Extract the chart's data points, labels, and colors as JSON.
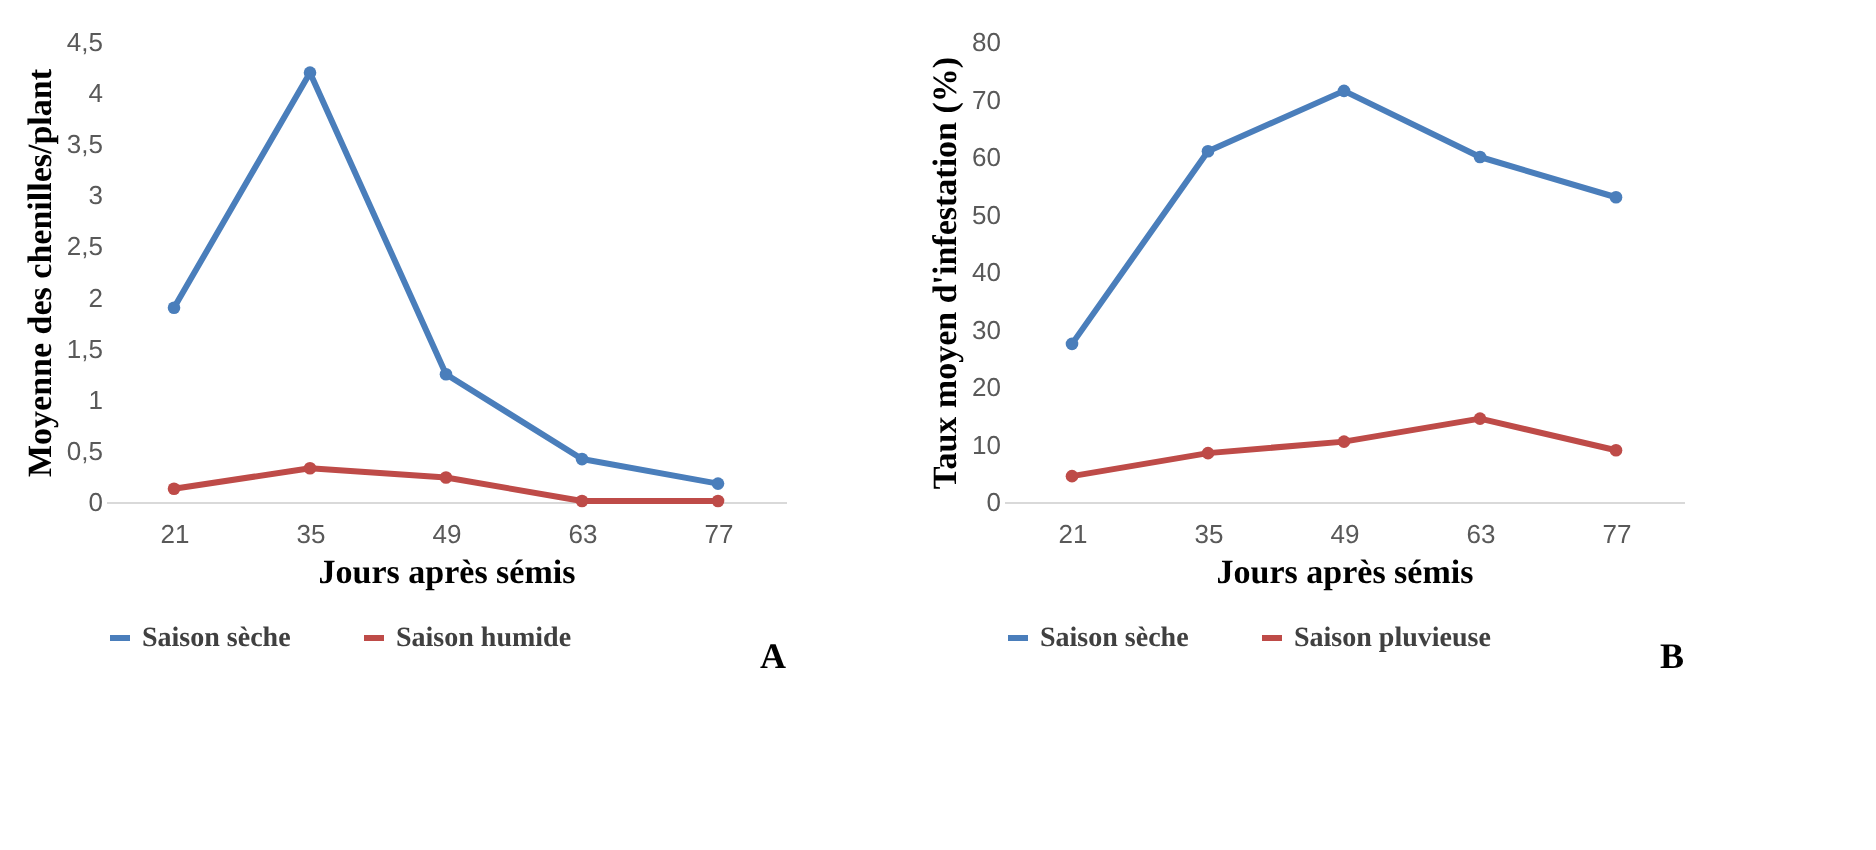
{
  "chart_data": [
    {
      "type": "line",
      "categories": [
        "21",
        "35",
        "49",
        "63",
        "77"
      ],
      "xlabel": "Jours après sémis",
      "ylabel": "Moyenne des chenilles/plant",
      "ylim": [
        0,
        4.5
      ],
      "yticks": [
        {
          "value": 0,
          "label": "0"
        },
        {
          "value": 0.5,
          "label": "0,5"
        },
        {
          "value": 1,
          "label": "1"
        },
        {
          "value": 1.5,
          "label": "1,5"
        },
        {
          "value": 2,
          "label": "2"
        },
        {
          "value": 2.5,
          "label": "2,5"
        },
        {
          "value": 3,
          "label": "3"
        },
        {
          "value": 3.5,
          "label": "3,5"
        },
        {
          "value": 4,
          "label": "4"
        },
        {
          "value": 4.5,
          "label": "4,5"
        }
      ],
      "grid": false,
      "legend": "bottom",
      "marker": "circle",
      "line_style": "solid",
      "annotations": [
        "A"
      ],
      "series": [
        {
          "name": "Saison sèche",
          "color": "#4a7ebb",
          "values": [
            1.9,
            4.2,
            1.25,
            0.42,
            0.18
          ]
        },
        {
          "name": "Saison humide",
          "color": "#be4b48",
          "values": [
            0.13,
            0.33,
            0.24,
            0.01,
            0.01
          ]
        }
      ]
    },
    {
      "type": "line",
      "categories": [
        "21",
        "35",
        "49",
        "63",
        "77"
      ],
      "xlabel": "Jours après sémis",
      "ylabel": "Taux moyen d'infestation (%)",
      "ylim": [
        0,
        80
      ],
      "yticks": [
        0,
        10,
        20,
        30,
        40,
        50,
        60,
        70,
        80
      ],
      "grid": false,
      "legend": "bottom",
      "marker": "circle",
      "line_style": "solid",
      "annotations": [
        "B"
      ],
      "series": [
        {
          "name": "Saison sèche",
          "color": "#4a7ebb",
          "values": [
            27.5,
            61,
            71.5,
            60,
            53
          ]
        },
        {
          "name": "Saison pluvieuse",
          "color": "#be4b48",
          "values": [
            4.5,
            8.5,
            10.5,
            14.5,
            9
          ]
        }
      ]
    }
  ]
}
